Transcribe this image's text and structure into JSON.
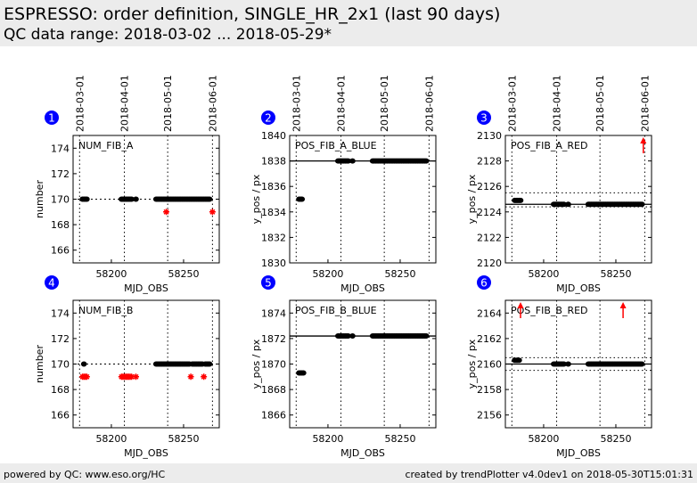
{
  "header": {
    "title": "ESPRESSO: order definition, SINGLE_HR_2x1 (last 90 days)",
    "subtitle": "QC data range: 2018-03-02 ... 2018-05-29*"
  },
  "footer": {
    "left": "powered by QC: www.eso.org/HC",
    "right": "created by trendPlotter v4.0dev1 on 2018-05-30T15:01:31"
  },
  "colors": {
    "normal": "#000000",
    "outlier": "#ff0000",
    "badge": "#0000ff"
  },
  "chart_data": [
    {
      "type": "scatter",
      "index": "1",
      "label": "NUM_FIB_A",
      "xlabel": "MJD_OBS",
      "ylabel": "number",
      "xlim": [
        58173.5,
        58274.7
      ],
      "ylim": [
        165,
        175
      ],
      "yticks": [
        166,
        168,
        170,
        172,
        174
      ],
      "xticks": [
        58200,
        58250
      ],
      "date_ticks": [
        {
          "label": "2018-03-01",
          "mjd": 58178
        },
        {
          "label": "2018-04-01",
          "mjd": 58209
        },
        {
          "label": "2018-05-01",
          "mjd": 58239
        },
        {
          "label": "2018-06-01",
          "mjd": 58270
        }
      ],
      "ref": {
        "value": 170,
        "style": "dotted"
      },
      "limits": [],
      "segments": [
        {
          "x": [
            58180,
            58181,
            58182,
            58183
          ],
          "y": 170
        },
        {
          "x": [
            58207,
            58208,
            58209,
            58210,
            58211,
            58212,
            58213,
            58214,
            58217
          ],
          "y": 170
        },
        {
          "x": [
            58231,
            58232,
            58233,
            58234,
            58235,
            58236,
            58237,
            58238,
            58239,
            58240,
            58241,
            58242,
            58243,
            58244,
            58245,
            58246,
            58247,
            58248,
            58249,
            58250,
            58251,
            58252,
            58253,
            58254,
            58255,
            58256,
            58257,
            58258,
            58259,
            58260,
            58261,
            58262,
            58263,
            58264,
            58265,
            58266,
            58267,
            58268
          ],
          "y": 170
        }
      ],
      "outliers": [
        {
          "x": 58238,
          "y": 169
        },
        {
          "x": 58270,
          "y": 169
        }
      ],
      "offscale_high": []
    },
    {
      "type": "scatter",
      "index": "2",
      "label": "POS_FIB_A_BLUE",
      "xlabel": "MJD_OBS",
      "ylabel": "y_pos / px",
      "xlim": [
        58173.5,
        58274.7
      ],
      "ylim": [
        1830,
        1840
      ],
      "yticks": [
        1830,
        1832,
        1834,
        1836,
        1838,
        1840
      ],
      "xticks": [
        58200,
        58250
      ],
      "date_ticks": [
        {
          "label": "2018-03-01",
          "mjd": 58178
        },
        {
          "label": "2018-04-01",
          "mjd": 58209
        },
        {
          "label": "2018-05-01",
          "mjd": 58239
        },
        {
          "label": "2018-06-01",
          "mjd": 58270
        }
      ],
      "ref": {
        "value": 1838,
        "style": "solid"
      },
      "limits": [],
      "segments": [
        {
          "x": [
            58180,
            58181,
            58182
          ],
          "y": 1835
        },
        {
          "x": [
            58207,
            58208,
            58209,
            58210,
            58211,
            58212,
            58213,
            58214,
            58217
          ],
          "y": 1838
        },
        {
          "x": [
            58231,
            58232,
            58233,
            58234,
            58235,
            58236,
            58237,
            58238,
            58239,
            58240,
            58241,
            58242,
            58243,
            58244,
            58245,
            58246,
            58247,
            58248,
            58249,
            58250,
            58251,
            58252,
            58253,
            58254,
            58255,
            58256,
            58257,
            58258,
            58259,
            58260,
            58261,
            58262,
            58263,
            58264,
            58265,
            58266,
            58267,
            58268
          ],
          "y": 1838
        }
      ],
      "outliers": [],
      "offscale_high": []
    },
    {
      "type": "scatter",
      "index": "3",
      "label": "POS_FIB_A_RED",
      "xlabel": "MJD_OBS",
      "ylabel": "y_pos / px",
      "xlim": [
        58173.5,
        58274.7
      ],
      "ylim": [
        2120,
        2130
      ],
      "yticks": [
        2120,
        2122,
        2124,
        2126,
        2128,
        2130
      ],
      "xticks": [
        58200,
        58250
      ],
      "date_ticks": [
        {
          "label": "2018-03-01",
          "mjd": 58178
        },
        {
          "label": "2018-04-01",
          "mjd": 58209
        },
        {
          "label": "2018-05-01",
          "mjd": 58239
        },
        {
          "label": "2018-06-01",
          "mjd": 58270
        }
      ],
      "ref": {
        "value": 2124.6,
        "style": "solid"
      },
      "limits": [
        2125.5,
        2124.4
      ],
      "segments": [
        {
          "x": [
            58180,
            58181,
            58182,
            58183,
            58184
          ],
          "y": 2124.9
        },
        {
          "x": [
            58207,
            58208,
            58209,
            58210,
            58211,
            58212,
            58213,
            58214,
            58217
          ],
          "y": 2124.6
        },
        {
          "x": [
            58231,
            58232,
            58233,
            58234,
            58235,
            58236,
            58237,
            58238,
            58239,
            58240,
            58241,
            58242,
            58243,
            58244,
            58245,
            58246,
            58247,
            58248,
            58249,
            58250,
            58251,
            58252,
            58253,
            58254,
            58255,
            58256,
            58257,
            58258,
            58259,
            58260,
            58261,
            58262,
            58263,
            58264,
            58265,
            58266,
            58267,
            58268
          ],
          "y": 2124.6
        }
      ],
      "outliers": [],
      "offscale_high": [
        58269
      ]
    },
    {
      "type": "scatter",
      "index": "4",
      "label": "NUM_FIB_B",
      "xlabel": "MJD_OBS",
      "ylabel": "number",
      "xlim": [
        58173.5,
        58274.7
      ],
      "ylim": [
        165,
        175
      ],
      "yticks": [
        166,
        168,
        170,
        172,
        174
      ],
      "xticks": [
        58200,
        58250
      ],
      "date_ticks": [],
      "ref": {
        "value": 170,
        "style": "dotted"
      },
      "limits": [],
      "segments": [
        {
          "x": [
            58181
          ],
          "y": 170
        },
        {
          "x": [
            58231,
            58232,
            58233,
            58234,
            58235,
            58236,
            58237,
            58238,
            58239,
            58240,
            58241,
            58242,
            58243,
            58244,
            58245,
            58246,
            58247,
            58248,
            58249,
            58250,
            58251,
            58252,
            58253,
            58254,
            58256,
            58257,
            58258,
            58259,
            58260,
            58261,
            58262,
            58263,
            58265,
            58266,
            58267,
            58268
          ],
          "y": 170
        }
      ],
      "outliers": [
        {
          "x": 58180,
          "y": 169
        },
        {
          "x": 58181,
          "y": 169
        },
        {
          "x": 58182,
          "y": 169
        },
        {
          "x": 58183,
          "y": 169
        },
        {
          "x": 58207,
          "y": 169
        },
        {
          "x": 58208,
          "y": 169
        },
        {
          "x": 58209,
          "y": 169
        },
        {
          "x": 58210,
          "y": 169
        },
        {
          "x": 58211,
          "y": 169
        },
        {
          "x": 58212,
          "y": 169
        },
        {
          "x": 58213,
          "y": 169
        },
        {
          "x": 58214,
          "y": 169
        },
        {
          "x": 58217,
          "y": 169
        },
        {
          "x": 58255,
          "y": 169
        },
        {
          "x": 58264,
          "y": 169
        }
      ],
      "offscale_high": []
    },
    {
      "type": "scatter",
      "index": "5",
      "label": "POS_FIB_B_BLUE",
      "xlabel": "MJD_OBS",
      "ylabel": "y_pos / px",
      "xlim": [
        58173.5,
        58274.7
      ],
      "ylim": [
        1865,
        1875
      ],
      "yticks": [
        1866,
        1868,
        1870,
        1872,
        1874
      ],
      "xticks": [
        58200,
        58250
      ],
      "date_ticks": [],
      "ref": {
        "value": 1872.2,
        "style": "solid"
      },
      "limits": [],
      "segments": [
        {
          "x": [
            58180,
            58181,
            58182,
            58183
          ],
          "y": 1869.3
        },
        {
          "x": [
            58207,
            58208,
            58209,
            58210,
            58211,
            58212,
            58213,
            58214,
            58217
          ],
          "y": 1872.2
        },
        {
          "x": [
            58231,
            58232,
            58233,
            58234,
            58235,
            58236,
            58237,
            58238,
            58239,
            58240,
            58241,
            58242,
            58243,
            58244,
            58245,
            58246,
            58247,
            58248,
            58249,
            58250,
            58251,
            58252,
            58253,
            58254,
            58255,
            58256,
            58257,
            58258,
            58259,
            58260,
            58261,
            58262,
            58263,
            58264,
            58265,
            58266,
            58267,
            58268
          ],
          "y": 1872.2
        }
      ],
      "outliers": [],
      "offscale_high": []
    },
    {
      "type": "scatter",
      "index": "6",
      "label": "POS_FIB_B_RED",
      "xlabel": "MJD_OBS",
      "ylabel": "y_pos / px",
      "xlim": [
        58173.5,
        58274.7
      ],
      "ylim": [
        2155,
        2165
      ],
      "yticks": [
        2156,
        2158,
        2160,
        2162,
        2164
      ],
      "xticks": [
        58200,
        58250
      ],
      "date_ticks": [],
      "ref": {
        "value": 2160,
        "style": "solid"
      },
      "limits": [
        2160.5,
        2159.5
      ],
      "segments": [
        {
          "x": [
            58180,
            58181,
            58182,
            58183
          ],
          "y": 2160.3
        },
        {
          "x": [
            58207,
            58208,
            58209,
            58210,
            58211,
            58212,
            58213,
            58214,
            58217
          ],
          "y": 2160
        },
        {
          "x": [
            58231,
            58232,
            58233,
            58234,
            58235,
            58236,
            58237,
            58238,
            58239,
            58240,
            58241,
            58242,
            58243,
            58244,
            58245,
            58246,
            58247,
            58248,
            58249,
            58250,
            58251,
            58252,
            58253,
            58254,
            58255,
            58256,
            58257,
            58258,
            58259,
            58260,
            58261,
            58262,
            58263,
            58264,
            58265,
            58266,
            58267,
            58268
          ],
          "y": 2160
        }
      ],
      "outliers": [],
      "offscale_high": [
        58184,
        58255
      ]
    }
  ]
}
